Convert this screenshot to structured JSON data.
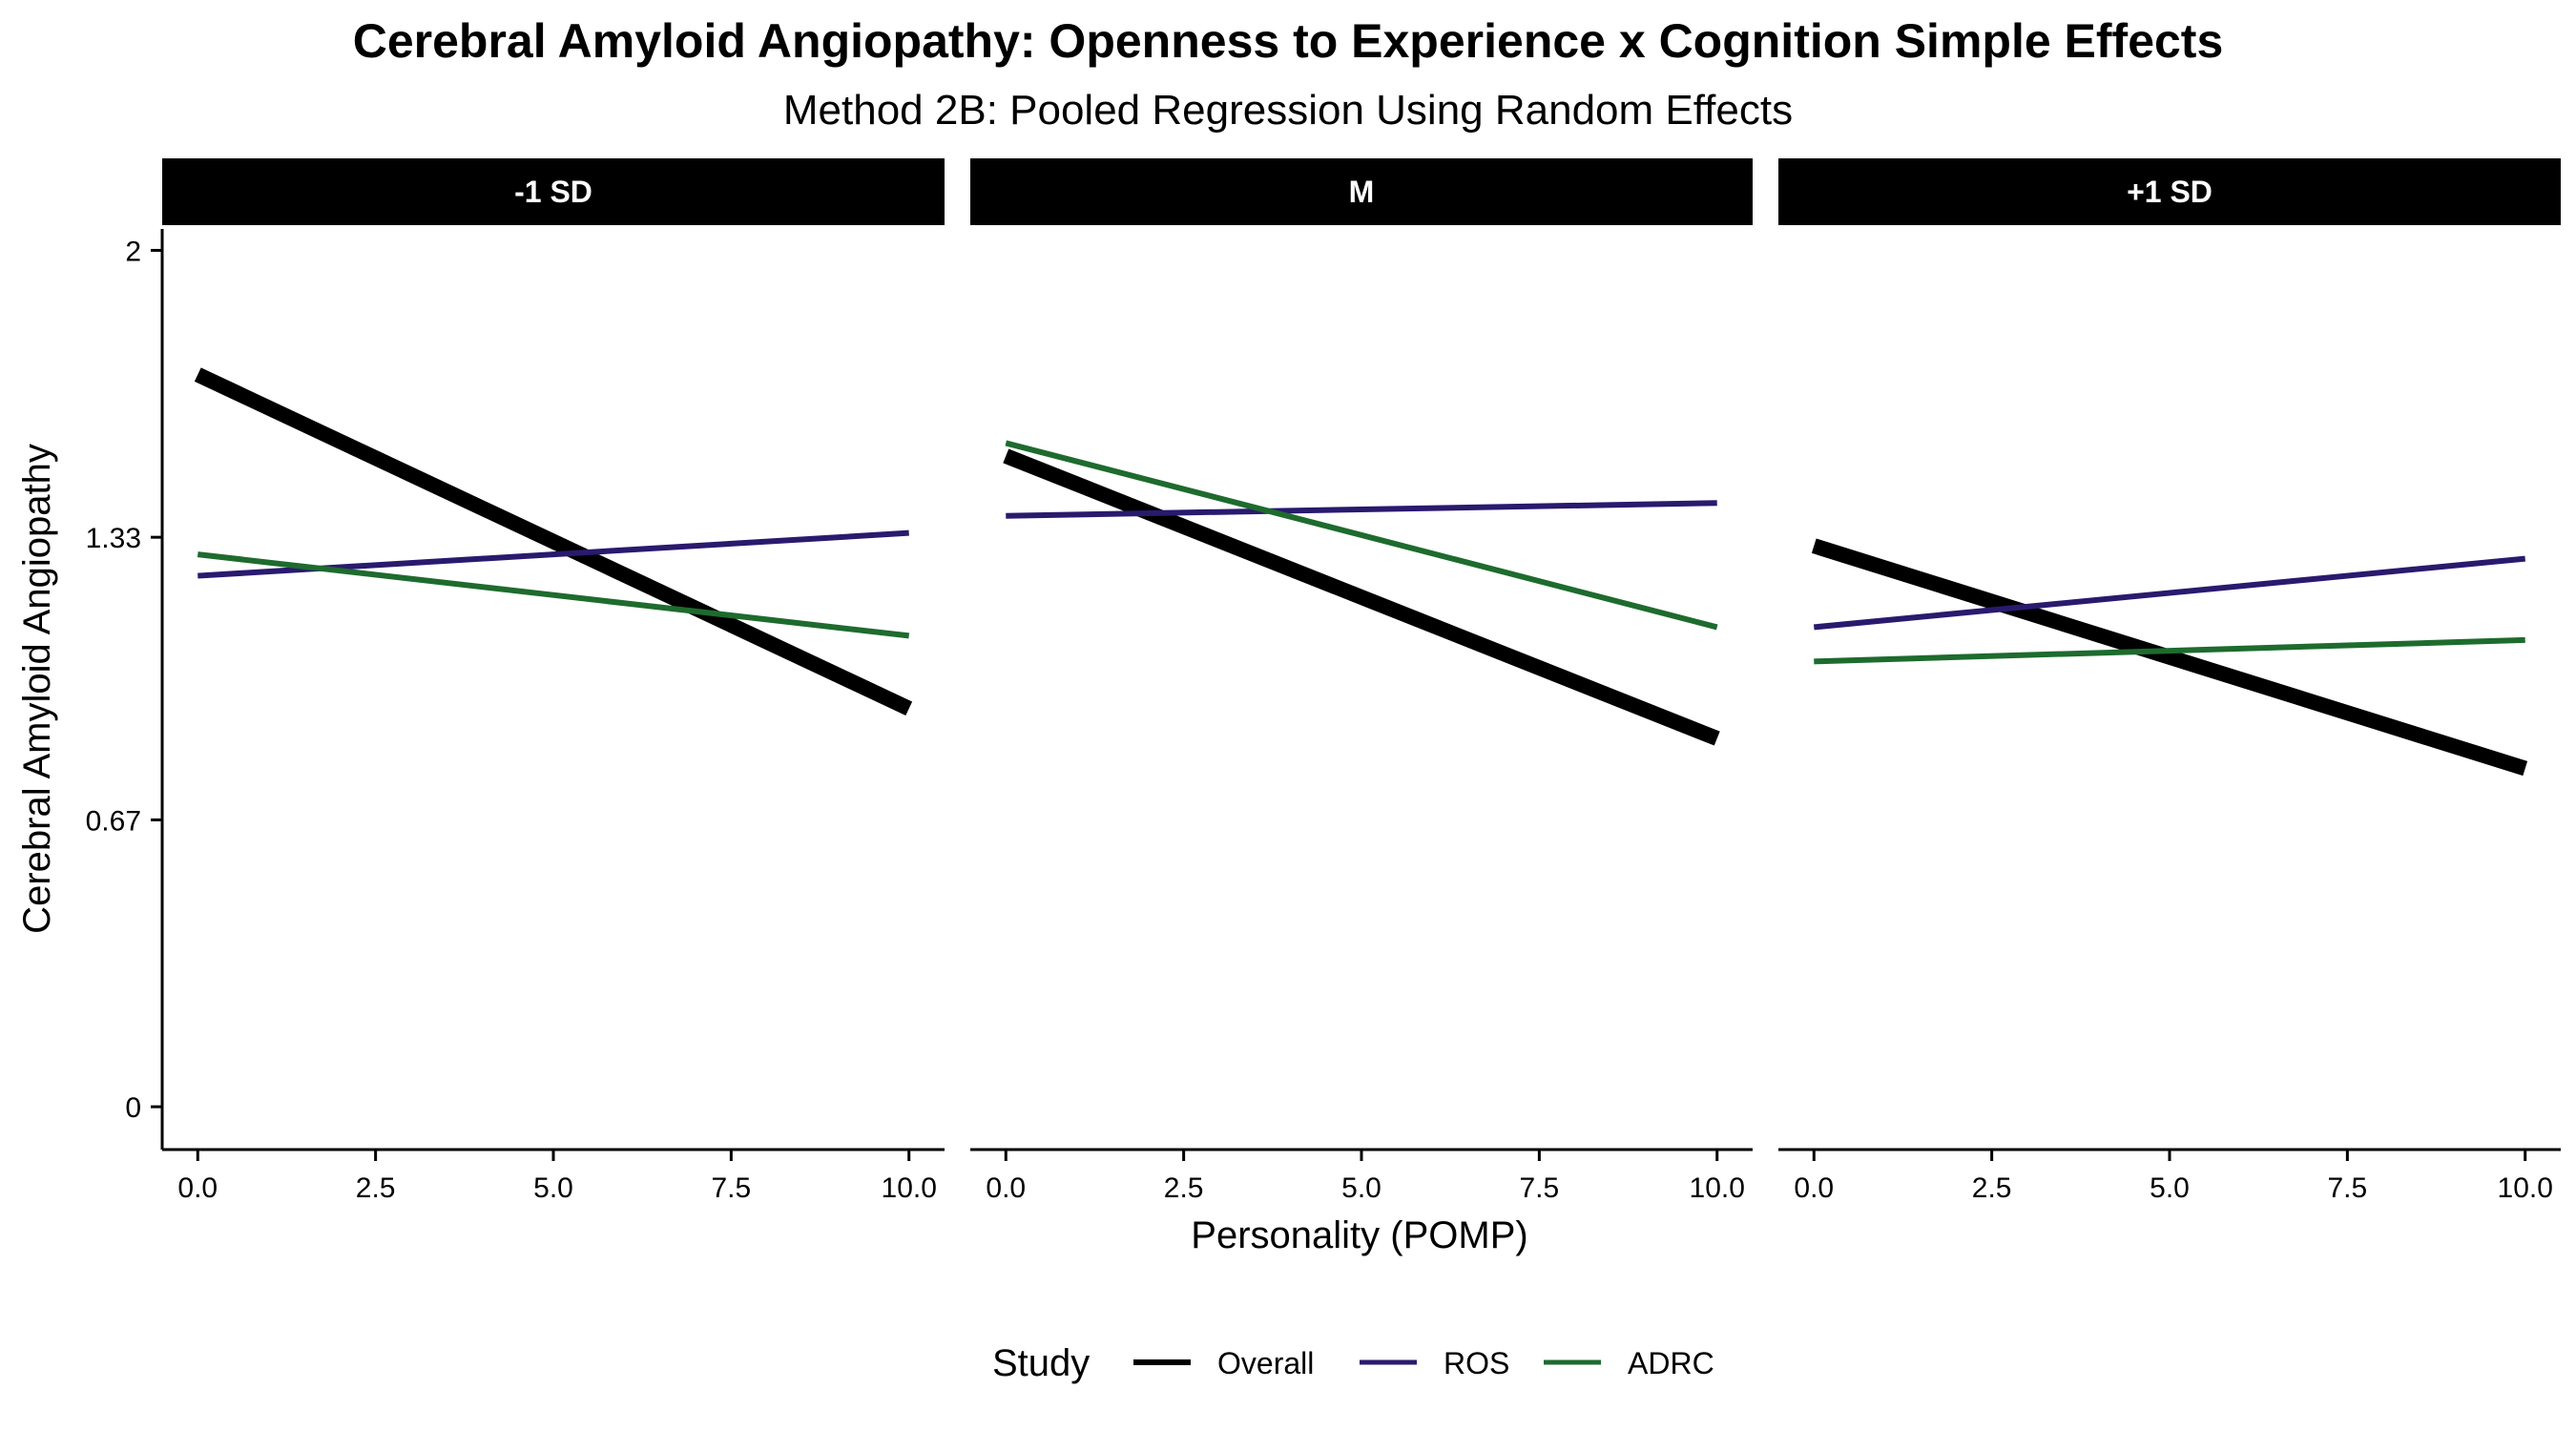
{
  "chart_data": {
    "type": "line",
    "title": "Cerebral Amyloid Angiopathy: Openness to Experience x Cognition Simple Effects",
    "subtitle": "Method 2B: Pooled Regression Using Random Effects",
    "xlabel": "Personality (POMP)",
    "ylabel": "Cerebral Amyloid Angiopathy",
    "xlim": [
      -0.5,
      10.5
    ],
    "ylim": [
      -0.1,
      2.05
    ],
    "x_ticks": [
      0,
      2.5,
      5,
      7.5,
      10
    ],
    "x_tick_labels": [
      "0.0",
      "2.5",
      "5.0",
      "7.5",
      "10.0"
    ],
    "y_ticks": [
      0,
      0.67,
      1.33,
      2
    ],
    "y_tick_labels": [
      "0",
      "0.67",
      "1.33",
      "2"
    ],
    "grid": false,
    "legend": {
      "title": "Study",
      "position": "bottom",
      "entries": [
        {
          "label": "Overall",
          "color": "#000000"
        },
        {
          "label": "ROS",
          "color": "#2a1a6e"
        },
        {
          "label": "ADRC",
          "color": "#1e6b2e"
        }
      ]
    },
    "panels": [
      {
        "label": "-1 SD",
        "series": [
          {
            "name": "Overall",
            "color": "#000000",
            "x": [
              0,
              10
            ],
            "y": [
              1.71,
              0.93
            ]
          },
          {
            "name": "ROS",
            "color": "#2a1a6e",
            "x": [
              0,
              10
            ],
            "y": [
              1.24,
              1.34
            ]
          },
          {
            "name": "ADRC",
            "color": "#1e6b2e",
            "x": [
              0,
              10
            ],
            "y": [
              1.29,
              1.1
            ]
          }
        ]
      },
      {
        "label": "M",
        "series": [
          {
            "name": "Overall",
            "color": "#000000",
            "x": [
              0,
              10
            ],
            "y": [
              1.52,
              0.86
            ]
          },
          {
            "name": "ROS",
            "color": "#2a1a6e",
            "x": [
              0,
              10
            ],
            "y": [
              1.38,
              1.41
            ]
          },
          {
            "name": "ADRC",
            "color": "#1e6b2e",
            "x": [
              0,
              10
            ],
            "y": [
              1.55,
              1.12
            ]
          }
        ]
      },
      {
        "label": "+1 SD",
        "series": [
          {
            "name": "Overall",
            "color": "#000000",
            "x": [
              0,
              10
            ],
            "y": [
              1.31,
              0.79
            ]
          },
          {
            "name": "ROS",
            "color": "#2a1a6e",
            "x": [
              0,
              10
            ],
            "y": [
              1.12,
              1.28
            ]
          },
          {
            "name": "ADRC",
            "color": "#1e6b2e",
            "x": [
              0,
              10
            ],
            "y": [
              1.04,
              1.09
            ]
          }
        ]
      }
    ]
  }
}
